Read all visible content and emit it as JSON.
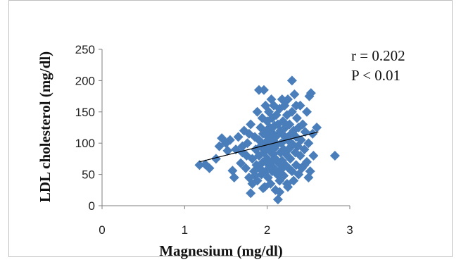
{
  "chart_data": {
    "type": "scatter",
    "title": "",
    "xlabel": "Magnesium (mg/dl)",
    "ylabel": "LDL cholesterol (mg/dl)",
    "xlim": [
      0,
      3
    ],
    "ylim": [
      0,
      250
    ],
    "x_ticks": [
      "0",
      "1",
      "2",
      "3"
    ],
    "y_ticks": [
      "0",
      "50",
      "100",
      "150",
      "200",
      "250"
    ],
    "grid": false,
    "legend": "none",
    "marker": "diamond",
    "marker_color": "#4a7ebb",
    "annotations": [
      "r = 0.202",
      "P < 0.01"
    ],
    "trendline": {
      "x1": 1.18,
      "y1": 70,
      "x2": 2.62,
      "y2": 118,
      "color": "#000000"
    },
    "points": [
      [
        1.18,
        65
      ],
      [
        1.25,
        66
      ],
      [
        1.3,
        60
      ],
      [
        1.38,
        75
      ],
      [
        1.42,
        95
      ],
      [
        1.45,
        108
      ],
      [
        1.5,
        100
      ],
      [
        1.52,
        88
      ],
      [
        1.55,
        105
      ],
      [
        1.58,
        56
      ],
      [
        1.6,
        45
      ],
      [
        1.62,
        90
      ],
      [
        1.65,
        110
      ],
      [
        1.68,
        68
      ],
      [
        1.7,
        95
      ],
      [
        1.72,
        120
      ],
      [
        1.74,
        60
      ],
      [
        1.75,
        80
      ],
      [
        1.76,
        100
      ],
      [
        1.78,
        45
      ],
      [
        1.8,
        20
      ],
      [
        1.8,
        130
      ],
      [
        1.82,
        35
      ],
      [
        1.82,
        75
      ],
      [
        1.84,
        55
      ],
      [
        1.85,
        110
      ],
      [
        1.86,
        90
      ],
      [
        1.87,
        65
      ],
      [
        1.88,
        150
      ],
      [
        1.88,
        40
      ],
      [
        1.9,
        105
      ],
      [
        1.9,
        80
      ],
      [
        1.9,
        185
      ],
      [
        1.91,
        60
      ],
      [
        1.92,
        125
      ],
      [
        1.92,
        95
      ],
      [
        1.93,
        50
      ],
      [
        1.94,
        140
      ],
      [
        1.95,
        115
      ],
      [
        1.95,
        70
      ],
      [
        1.96,
        185
      ],
      [
        1.96,
        85
      ],
      [
        1.97,
        30
      ],
      [
        1.97,
        100
      ],
      [
        1.98,
        160
      ],
      [
        1.98,
        55
      ],
      [
        1.99,
        120
      ],
      [
        2.0,
        75
      ],
      [
        2.0,
        95
      ],
      [
        2.0,
        135
      ],
      [
        2.01,
        45
      ],
      [
        2.01,
        110
      ],
      [
        2.02,
        65
      ],
      [
        2.02,
        150
      ],
      [
        2.03,
        88
      ],
      [
        2.03,
        125
      ],
      [
        2.04,
        35
      ],
      [
        2.04,
        100
      ],
      [
        2.05,
        70
      ],
      [
        2.05,
        118
      ],
      [
        2.06,
        55
      ],
      [
        2.06,
        140
      ],
      [
        2.07,
        82
      ],
      [
        2.07,
        105
      ],
      [
        2.08,
        160
      ],
      [
        2.08,
        60
      ],
      [
        2.09,
        92
      ],
      [
        2.09,
        128
      ],
      [
        2.1,
        25
      ],
      [
        2.1,
        75
      ],
      [
        2.1,
        110
      ],
      [
        2.11,
        145
      ],
      [
        2.12,
        50
      ],
      [
        2.12,
        98
      ],
      [
        2.13,
        10
      ],
      [
        2.13,
        130
      ],
      [
        2.14,
        68
      ],
      [
        2.14,
        115
      ],
      [
        2.15,
        40
      ],
      [
        2.15,
        155
      ],
      [
        2.16,
        85
      ],
      [
        2.16,
        120
      ],
      [
        2.17,
        58
      ],
      [
        2.17,
        100
      ],
      [
        2.18,
        170
      ],
      [
        2.18,
        72
      ],
      [
        2.19,
        135
      ],
      [
        2.2,
        90
      ],
      [
        2.2,
        48
      ],
      [
        2.2,
        112
      ],
      [
        2.21,
        160
      ],
      [
        2.22,
        65
      ],
      [
        2.22,
        125
      ],
      [
        2.23,
        82
      ],
      [
        2.24,
        145
      ],
      [
        2.24,
        35
      ],
      [
        2.25,
        105
      ],
      [
        2.25,
        170
      ],
      [
        2.26,
        60
      ],
      [
        2.27,
        92
      ],
      [
        2.27,
        130
      ],
      [
        2.28,
        75
      ],
      [
        2.29,
        115
      ],
      [
        2.3,
        200
      ],
      [
        2.3,
        55
      ],
      [
        2.3,
        150
      ],
      [
        2.31,
        98
      ],
      [
        2.32,
        40
      ],
      [
        2.32,
        120
      ],
      [
        2.33,
        178
      ],
      [
        2.34,
        85
      ],
      [
        2.35,
        110
      ],
      [
        2.35,
        65
      ],
      [
        2.36,
        140
      ],
      [
        2.37,
        95
      ],
      [
        2.38,
        50
      ],
      [
        2.38,
        125
      ],
      [
        2.4,
        80
      ],
      [
        2.4,
        160
      ],
      [
        2.41,
        105
      ],
      [
        2.42,
        60
      ],
      [
        2.43,
        130
      ],
      [
        2.45,
        90
      ],
      [
        2.46,
        118
      ],
      [
        2.48,
        70
      ],
      [
        2.48,
        150
      ],
      [
        2.5,
        100
      ],
      [
        2.5,
        45
      ],
      [
        2.51,
        175
      ],
      [
        2.52,
        55
      ],
      [
        2.53,
        180
      ],
      [
        2.55,
        115
      ],
      [
        2.56,
        80
      ],
      [
        2.6,
        125
      ],
      [
        2.82,
        80
      ],
      [
        1.95,
        28
      ],
      [
        2.05,
        170
      ],
      [
        2.15,
        22
      ],
      [
        1.85,
        48
      ],
      [
        2.25,
        30
      ],
      [
        1.7,
        85
      ],
      [
        2.45,
        65
      ],
      [
        1.78,
        115
      ],
      [
        2.35,
        160
      ]
    ]
  }
}
